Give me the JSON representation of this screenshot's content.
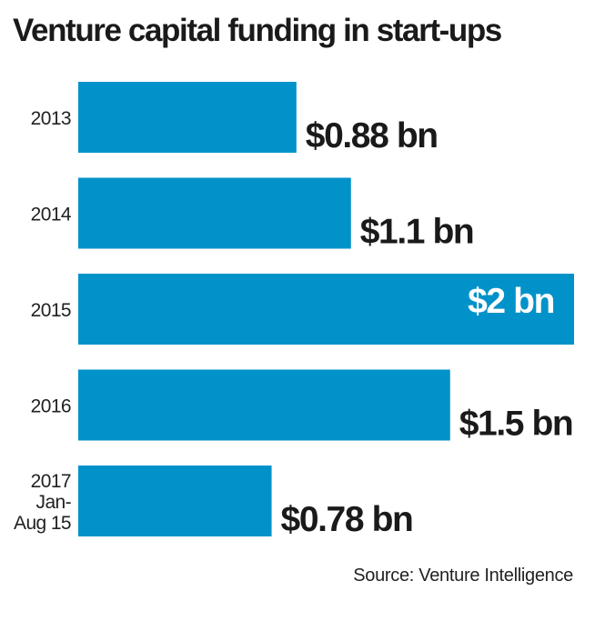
{
  "chart_data": {
    "type": "bar",
    "orientation": "horizontal",
    "title": "Venture capital funding in start-ups",
    "categories": [
      [
        "2013"
      ],
      [
        "2014"
      ],
      [
        "2015"
      ],
      [
        "2016"
      ],
      [
        "2017",
        "Jan-",
        "Aug 15"
      ]
    ],
    "values": [
      0.88,
      1.1,
      2,
      1.5,
      0.78
    ],
    "value_labels": [
      "$0.88 bn",
      "$1.1 bn",
      "$2 bn",
      "$1.5 bn",
      "$0.78 bn"
    ],
    "unit": "$ bn",
    "xlim": [
      0,
      2
    ],
    "grid": false,
    "bar_color": "#0092c9",
    "label_color": "#1a1a1a",
    "inside_label_color": "#ffffff",
    "source": "Source: Venture Intelligence"
  }
}
